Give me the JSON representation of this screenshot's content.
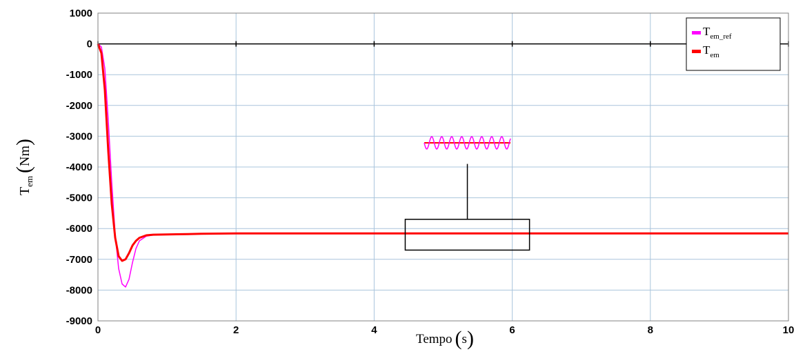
{
  "chart_data": {
    "type": "line",
    "xlabel": "Tempo",
    "xlabel_unit": "s",
    "ylabel_main": "T",
    "ylabel_sub": "em",
    "ylabel_unit": "Nm",
    "xlim": [
      0,
      10
    ],
    "ylim": [
      -9000,
      1000
    ],
    "x_ticks": [
      0,
      2,
      4,
      6,
      8,
      10
    ],
    "y_ticks": [
      1000,
      0,
      -1000,
      -2000,
      -3000,
      -4000,
      -5000,
      -6000,
      -7000,
      -8000,
      -9000
    ],
    "grid": true,
    "legend_position": "top-right",
    "colors": {
      "tem_ref": "#ff00ff",
      "tem": "#ff0000",
      "grid": "#a9c4dc",
      "zero_line": "#000000"
    },
    "series": [
      {
        "name_main": "T",
        "name_sub": "em_ref",
        "color": "#ff00ff",
        "x": [
          0,
          0.05,
          0.1,
          0.15,
          0.2,
          0.25,
          0.3,
          0.35,
          0.4,
          0.45,
          0.5,
          0.55,
          0.6,
          0.7,
          0.8,
          1.0,
          1.3,
          1.5,
          2,
          3,
          4,
          5,
          6,
          7,
          8,
          9,
          10
        ],
        "y": [
          0,
          -100,
          -800,
          -2500,
          -4500,
          -6200,
          -7300,
          -7800,
          -7900,
          -7650,
          -7100,
          -6650,
          -6400,
          -6250,
          -6210,
          -6200,
          -6180,
          -6170,
          -6160,
          -6160,
          -6160,
          -6160,
          -6160,
          -6160,
          -6160,
          -6160,
          -6160
        ]
      },
      {
        "name_main": "T",
        "name_sub": "em",
        "color": "#ff0000",
        "x": [
          0,
          0.05,
          0.1,
          0.15,
          0.2,
          0.25,
          0.3,
          0.35,
          0.4,
          0.45,
          0.5,
          0.55,
          0.6,
          0.7,
          0.8,
          1.0,
          1.3,
          1.5,
          2,
          3,
          4,
          5,
          6,
          7,
          8,
          9,
          10
        ],
        "y": [
          0,
          -300,
          -1500,
          -3500,
          -5200,
          -6300,
          -6900,
          -7050,
          -7000,
          -6800,
          -6550,
          -6400,
          -6300,
          -6220,
          -6200,
          -6190,
          -6180,
          -6170,
          -6160,
          -6160,
          -6160,
          -6160,
          -6160,
          -6160,
          -6160,
          -6160,
          -6160
        ]
      }
    ],
    "annotations": [
      {
        "type": "zoom-box",
        "x_range": [
          4.45,
          6.25
        ],
        "y_range": [
          -6700,
          -5700
        ]
      },
      {
        "type": "zoom-inset",
        "note": "magnified oscillation of both signals"
      }
    ]
  }
}
